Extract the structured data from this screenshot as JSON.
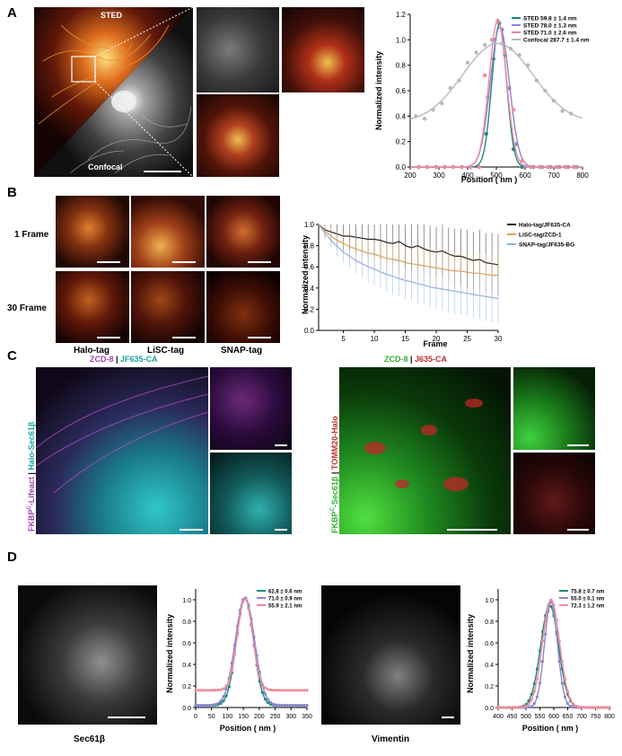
{
  "panels": {
    "a": "A",
    "b": "B",
    "c": "C",
    "d": "D"
  },
  "panel_a": {
    "sted_label": "STED",
    "confocal_label": "Confocal"
  },
  "panel_b": {
    "rows": [
      "1 Frame",
      "30 Frame"
    ],
    "cols": [
      "Halo-tag",
      "LiSC-tag",
      "SNAP-tag"
    ]
  },
  "panel_c": {
    "left_title_a": "ZCD-8",
    "left_title_sep": " | ",
    "left_title_b": "JF635-CA",
    "left_side_a": "FKBP",
    "left_side_sup": "C",
    "left_side_b": "-Lifeact",
    "left_side_sep": " | ",
    "left_side_c": "Halo-Sec61β",
    "right_title_a": "ZCD-8",
    "right_title_sep": " | ",
    "right_title_b": "J635-CA",
    "right_side_a": "FKBP",
    "right_side_sup": "C",
    "right_side_b": "-Sec61β",
    "right_side_sep": " | ",
    "right_side_c": "TOMM20-Halo"
  },
  "panel_d": {
    "left_caption": "Sec61β",
    "right_caption": "Vimentin"
  },
  "colors": {
    "sted_green": "#1f8a7a",
    "sted_purple": "#8a86cf",
    "sted_pink": "#f08a9a",
    "confocal_gray": "#b8b8b8",
    "halo_black": "#222222",
    "lisc_orange": "#e0a050",
    "snap_blue": "#8fb0e0",
    "magenta": "#b040c0",
    "cyan": "#22b8b8",
    "green": "#30c030",
    "red": "#d03030"
  },
  "chart_data": [
    {
      "id": "A",
      "type": "line",
      "xlabel": "Position ( nm )",
      "ylabel": "Normalized intensity",
      "xlim": [
        200,
        800
      ],
      "ylim": [
        0,
        1.2
      ],
      "xticks": [
        200,
        300,
        400,
        500,
        600,
        700,
        800
      ],
      "yticks": [
        0.0,
        0.2,
        0.4,
        0.6,
        0.8,
        1.0,
        1.2
      ],
      "legend_position": "top-right",
      "series": [
        {
          "name": "STED 59.8 ± 1.4 nm",
          "fit": {
            "center": 510,
            "fwhm": 59.8,
            "amp": 1.12,
            "base": 0
          },
          "points": [
            [
              230,
              0
            ],
            [
              260,
              0
            ],
            [
              290,
              0
            ],
            [
              320,
              0
            ],
            [
              350,
              0
            ],
            [
              380,
              0
            ],
            [
              410,
              0
            ],
            [
              440,
              0
            ],
            [
              465,
              0.26
            ],
            [
              490,
              0.85
            ],
            [
              510,
              1.13
            ],
            [
              530,
              0.88
            ],
            [
              560,
              0.14
            ],
            [
              590,
              0
            ],
            [
              620,
              0
            ],
            [
              650,
              0
            ],
            [
              680,
              0
            ],
            [
              710,
              0
            ],
            [
              740,
              0
            ],
            [
              770,
              0
            ]
          ]
        },
        {
          "name": "STED 78.0 ± 1.3 nm",
          "fit": {
            "center": 512,
            "fwhm": 78.0,
            "amp": 1.1,
            "base": 0
          },
          "points": [
            [
              230,
              0
            ],
            [
              260,
              0
            ],
            [
              290,
              0
            ],
            [
              320,
              0
            ],
            [
              350,
              0
            ],
            [
              380,
              0
            ],
            [
              410,
              0
            ],
            [
              440,
              0
            ],
            [
              470,
              0.55
            ],
            [
              495,
              1.0
            ],
            [
              520,
              1.08
            ],
            [
              545,
              0.62
            ],
            [
              570,
              0.18
            ],
            [
              600,
              0
            ],
            [
              630,
              0
            ],
            [
              660,
              0
            ],
            [
              690,
              0
            ],
            [
              720,
              0
            ],
            [
              750,
              0
            ],
            [
              780,
              0
            ]
          ]
        },
        {
          "name": "STED 71.0 ± 2.6 nm",
          "fit": {
            "center": 505,
            "fwhm": 71.0,
            "amp": 1.15,
            "base": 0
          },
          "points": [
            [
              230,
              0
            ],
            [
              260,
              0
            ],
            [
              290,
              0
            ],
            [
              320,
              0
            ],
            [
              350,
              0
            ],
            [
              380,
              0
            ],
            [
              410,
              0
            ],
            [
              440,
              0
            ],
            [
              460,
              0.72
            ],
            [
              485,
              1.0
            ],
            [
              505,
              1.15
            ],
            [
              530,
              0.9
            ],
            [
              560,
              0.45
            ],
            [
              590,
              0.05
            ],
            [
              620,
              0
            ],
            [
              650,
              0
            ],
            [
              680,
              0
            ],
            [
              710,
              0
            ],
            [
              740,
              0
            ],
            [
              770,
              0
            ]
          ]
        },
        {
          "name": "Confocal 287.7 ± 1.4 nm",
          "fit": {
            "center": 505,
            "fwhm": 287.7,
            "amp": 0.62,
            "base": 0.35
          },
          "points": [
            [
              220,
              0.4
            ],
            [
              250,
              0.38
            ],
            [
              280,
              0.45
            ],
            [
              310,
              0.5
            ],
            [
              340,
              0.62
            ],
            [
              370,
              0.68
            ],
            [
              400,
              0.82
            ],
            [
              430,
              0.9
            ],
            [
              460,
              0.96
            ],
            [
              490,
              0.98
            ],
            [
              520,
              0.97
            ],
            [
              550,
              0.93
            ],
            [
              580,
              0.88
            ],
            [
              610,
              0.8
            ],
            [
              640,
              0.68
            ],
            [
              670,
              0.6
            ],
            [
              700,
              0.52
            ],
            [
              730,
              0.44
            ],
            [
              760,
              0.42
            ]
          ]
        }
      ]
    },
    {
      "id": "B",
      "type": "line",
      "xlabel": "Frame",
      "ylabel": "Normalized intensity",
      "xlim": [
        1,
        30
      ],
      "ylim": [
        0,
        1.0
      ],
      "xticks": [
        5,
        10,
        15,
        20,
        25,
        30
      ],
      "yticks": [
        0.0,
        0.2,
        0.4,
        0.6,
        0.8,
        1.0
      ],
      "legend_position": "top-right",
      "series": [
        {
          "name": "Halo-tag/JF635-CA",
          "values": [
            1.0,
            0.95,
            0.93,
            0.91,
            0.89,
            0.89,
            0.88,
            0.87,
            0.86,
            0.86,
            0.85,
            0.83,
            0.82,
            0.84,
            0.8,
            0.78,
            0.8,
            0.77,
            0.75,
            0.74,
            0.75,
            0.72,
            0.7,
            0.7,
            0.68,
            0.66,
            0.67,
            0.64,
            0.63,
            0.62
          ],
          "err": [
            0,
            0.08,
            0.1,
            0.12,
            0.13,
            0.14,
            0.15,
            0.16,
            0.17,
            0.17,
            0.18,
            0.19,
            0.2,
            0.2,
            0.21,
            0.22,
            0.22,
            0.23,
            0.24,
            0.24,
            0.25,
            0.25,
            0.26,
            0.26,
            0.27,
            0.27,
            0.28,
            0.28,
            0.29,
            0.29
          ]
        },
        {
          "name": "LiSC-tag/ZCD-1",
          "values": [
            1.0,
            0.94,
            0.89,
            0.85,
            0.82,
            0.79,
            0.77,
            0.75,
            0.73,
            0.72,
            0.7,
            0.68,
            0.67,
            0.66,
            0.64,
            0.63,
            0.62,
            0.61,
            0.6,
            0.59,
            0.58,
            0.57,
            0.56,
            0.56,
            0.55,
            0.54,
            0.54,
            0.53,
            0.52,
            0.52
          ],
          "err": [
            0,
            0.06,
            0.08,
            0.09,
            0.1,
            0.11,
            0.12,
            0.12,
            0.13,
            0.13,
            0.14,
            0.14,
            0.15,
            0.15,
            0.15,
            0.16,
            0.16,
            0.16,
            0.17,
            0.17,
            0.17,
            0.18,
            0.18,
            0.18,
            0.18,
            0.19,
            0.19,
            0.19,
            0.19,
            0.2
          ]
        },
        {
          "name": "SNAP-tag/JF635-BG",
          "values": [
            1.0,
            0.92,
            0.85,
            0.79,
            0.74,
            0.7,
            0.66,
            0.63,
            0.6,
            0.58,
            0.55,
            0.53,
            0.51,
            0.49,
            0.47,
            0.46,
            0.44,
            0.43,
            0.41,
            0.4,
            0.39,
            0.38,
            0.37,
            0.36,
            0.35,
            0.34,
            0.33,
            0.32,
            0.31,
            0.3
          ],
          "err": [
            0,
            0.05,
            0.07,
            0.09,
            0.1,
            0.11,
            0.12,
            0.13,
            0.14,
            0.15,
            0.15,
            0.16,
            0.17,
            0.17,
            0.18,
            0.18,
            0.19,
            0.19,
            0.2,
            0.2,
            0.2,
            0.21,
            0.21,
            0.21,
            0.22,
            0.22,
            0.22,
            0.23,
            0.23,
            0.23
          ]
        }
      ]
    },
    {
      "id": "D1",
      "type": "line",
      "xlabel": "Position ( nm )",
      "ylabel": "Normalized intensity",
      "xlim": [
        0,
        350
      ],
      "ylim": [
        0,
        1.1
      ],
      "xticks": [
        0,
        50,
        100,
        150,
        200,
        250,
        300,
        350
      ],
      "yticks": [
        0.0,
        0.2,
        0.4,
        0.6,
        0.8,
        1.0
      ],
      "legend_position": "top-right",
      "series": [
        {
          "name": "62.8 ± 0.6 nm",
          "fit": {
            "center": 155,
            "fwhm": 62.8,
            "amp": 1.0,
            "base": 0.02
          }
        },
        {
          "name": "71.0 ± 0.9 nm",
          "fit": {
            "center": 155,
            "fwhm": 71.0,
            "amp": 1.0,
            "base": 0.02
          }
        },
        {
          "name": "55.9 ± 2.1 nm",
          "fit": {
            "center": 155,
            "fwhm": 55.9,
            "amp": 0.85,
            "base": 0.16
          }
        }
      ]
    },
    {
      "id": "D2",
      "type": "line",
      "xlabel": "Position ( nm )",
      "ylabel": "Normalized intensity",
      "xlim": [
        400,
        800
      ],
      "ylim": [
        0,
        1.1
      ],
      "xticks": [
        400,
        450,
        500,
        550,
        600,
        650,
        700,
        750,
        800
      ],
      "yticks": [
        0.0,
        0.2,
        0.4,
        0.6,
        0.8,
        1.0
      ],
      "legend_position": "top-right",
      "series": [
        {
          "name": "75.8 ± 0.7 nm",
          "fit": {
            "center": 585,
            "fwhm": 75.8,
            "amp": 0.95,
            "base": 0
          }
        },
        {
          "name": "55.0 ± 0.1 nm",
          "fit": {
            "center": 590,
            "fwhm": 55.0,
            "amp": 0.98,
            "base": 0
          }
        },
        {
          "name": "72.3 ± 1.2 nm",
          "fit": {
            "center": 590,
            "fwhm": 72.3,
            "amp": 1.0,
            "base": 0
          }
        }
      ]
    }
  ]
}
